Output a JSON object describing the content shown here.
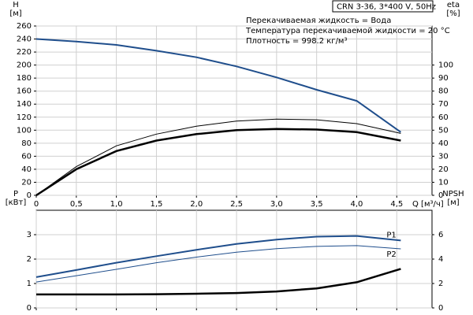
{
  "chart_data": [
    {
      "type": "line",
      "title": "CRN 3-36, 3*400 V, 50Hz",
      "annotations": [
        "Перекачиваемая жидкость = Вода",
        "Температура перекачиваемой жидкости = 20 °C",
        "Плотность = 998.2 кг/м³"
      ],
      "xlabel": "Q [м³/ч]",
      "ylabel": [
        "H",
        "[м]"
      ],
      "y2label": [
        "eta",
        "[%]"
      ],
      "x": [
        0,
        0.5,
        1,
        1.5,
        2,
        2.5,
        3,
        3.5,
        4,
        4.55
      ],
      "xlim": [
        0,
        4.94
      ],
      "xticks": [
        0,
        {
          "value": 0.5,
          "label": "0,5"
        },
        {
          "value": 1,
          "label": "1,0"
        },
        {
          "value": 1.5,
          "label": "1,5"
        },
        {
          "value": 2,
          "label": "2,0"
        },
        {
          "value": 2.5,
          "label": "2,5"
        },
        {
          "value": 3,
          "label": "3,0"
        },
        {
          "value": 3.5,
          "label": "3,5"
        },
        {
          "value": 4,
          "label": "4,0"
        },
        {
          "value": 4.5,
          "label": "4,5"
        }
      ],
      "ylim": [
        0,
        260
      ],
      "yticks": [
        0,
        20,
        40,
        60,
        80,
        100,
        120,
        140,
        160,
        180,
        200,
        220,
        240,
        260
      ],
      "y2lim": [
        0,
        130
      ],
      "y2ticks": [
        0,
        10,
        20,
        30,
        40,
        50,
        60,
        70,
        80,
        90,
        100
      ],
      "grid": true,
      "series": [
        {
          "color": "#1f4e8c",
          "linewidth": 2,
          "values": [
            240,
            236,
            231,
            222,
            212,
            198,
            181,
            162,
            145,
            97
          ]
        },
        {
          "color": "#000000",
          "linewidth": 1,
          "axis": "y2",
          "values": [
            0,
            22,
            38,
            47,
            53,
            57,
            58.5,
            58,
            55,
            47.5
          ]
        },
        {
          "color": "#000000",
          "linewidth": 2.5,
          "axis": "y2",
          "values": [
            0,
            20,
            34,
            42,
            47,
            50,
            51,
            50.5,
            48.5,
            42
          ]
        }
      ]
    },
    {
      "type": "line",
      "ylabel": [
        "P",
        "[кВт]"
      ],
      "y2label": [
        "NPSH",
        "[м]"
      ],
      "x": [
        0,
        0.5,
        1,
        1.5,
        2,
        2.5,
        3,
        3.5,
        4,
        4.55
      ],
      "xlim": [
        0,
        4.94
      ],
      "xticks": [
        0,
        0.5,
        1,
        1.5,
        2,
        2.5,
        3,
        3.5,
        4,
        4.5
      ],
      "ylim": [
        0,
        4
      ],
      "yticks": [
        0,
        1,
        2,
        3
      ],
      "y2lim": [
        0,
        8
      ],
      "y2ticks": [
        0,
        2,
        4,
        6
      ],
      "grid": true,
      "series": [
        {
          "name": "P1",
          "color": "#1f4e8c",
          "linewidth": 2,
          "values": [
            1.26,
            1.55,
            1.85,
            2.12,
            2.38,
            2.62,
            2.8,
            2.92,
            2.95,
            2.76
          ]
        },
        {
          "name": "P2",
          "color": "#1f4e8c",
          "linewidth": 1,
          "values": [
            1.06,
            1.32,
            1.58,
            1.85,
            2.08,
            2.28,
            2.43,
            2.52,
            2.55,
            2.42
          ]
        },
        {
          "color": "#000000",
          "linewidth": 2.5,
          "axis": "y2",
          "values": [
            1.1,
            1.1,
            1.1,
            1.12,
            1.16,
            1.22,
            1.35,
            1.6,
            2.1,
            3.2
          ]
        }
      ]
    }
  ]
}
